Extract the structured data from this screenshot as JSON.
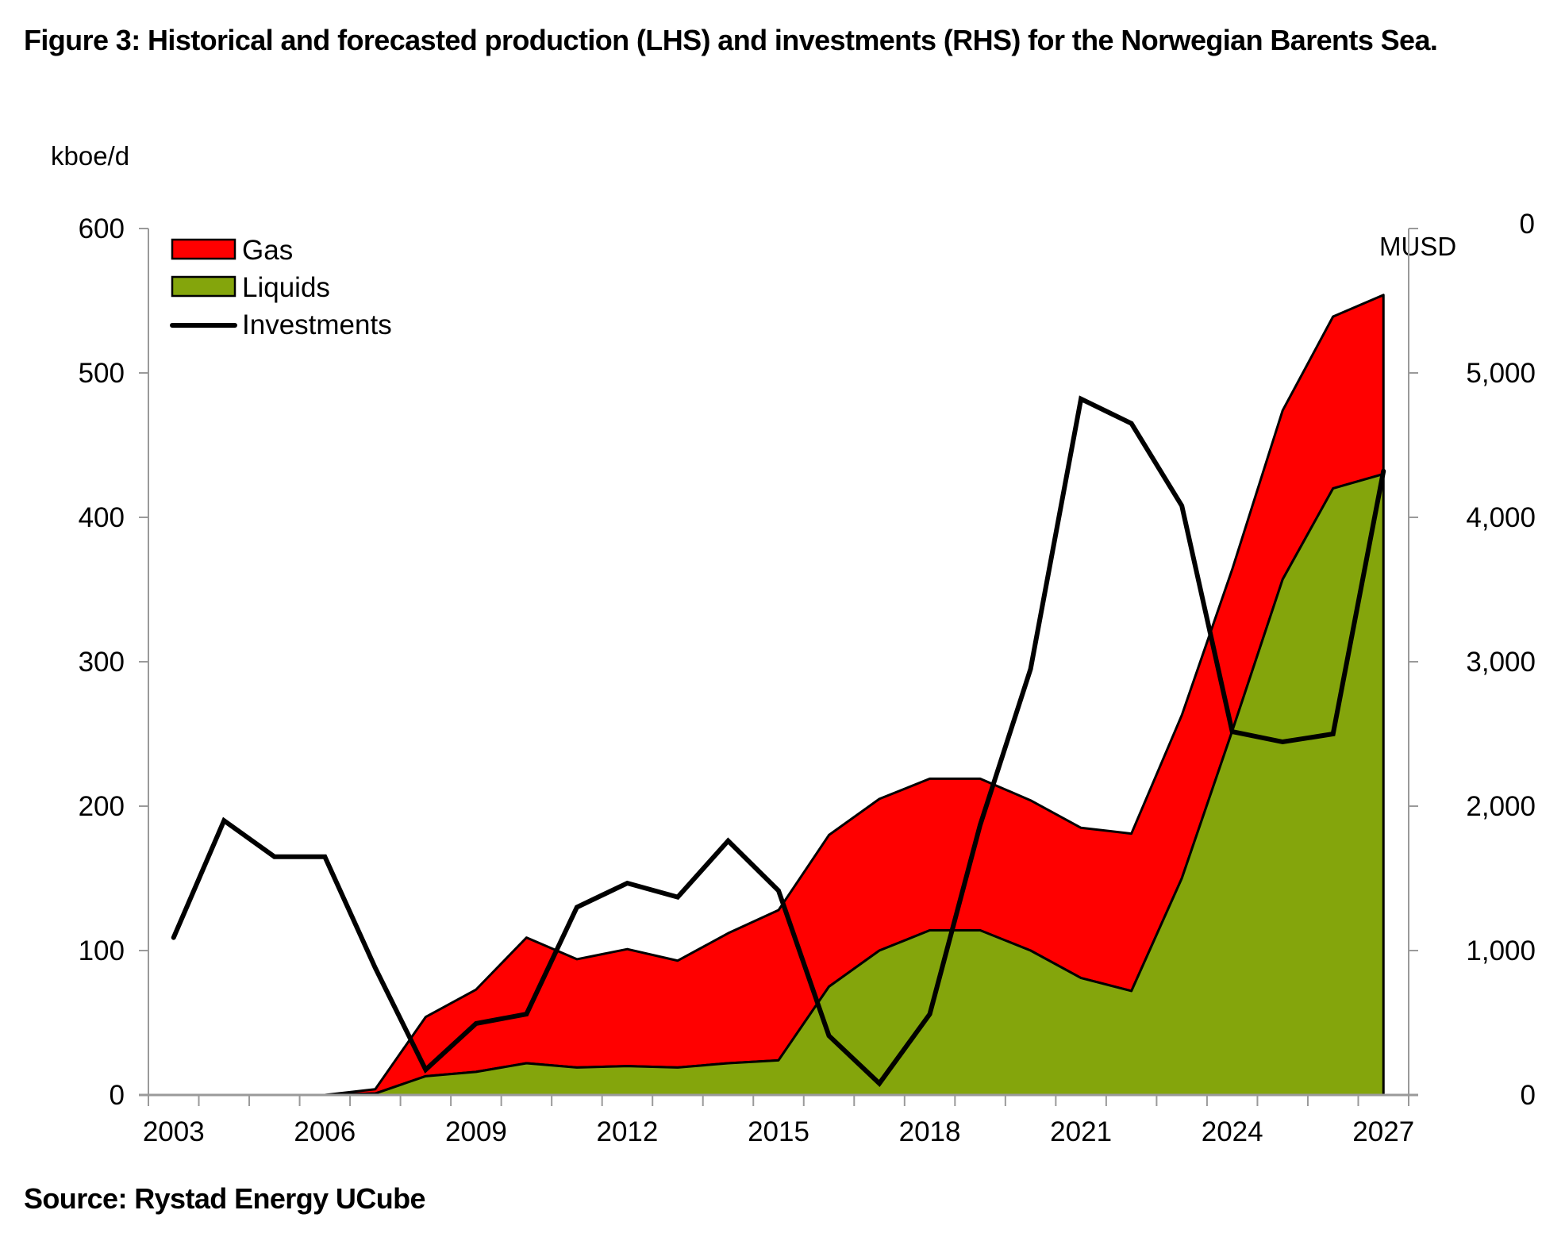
{
  "chart_data": {
    "type": "area",
    "title": "Figure 3: Historical and forecasted production (LHS) and investments (RHS) for the Norwegian Barents Sea.",
    "source": "Source: Rystad Energy UCube",
    "ylabel_left": "kboe/d",
    "ylabel_right": "MUSD",
    "ylim_left": [
      0,
      600
    ],
    "ylim_right": [
      0,
      6000
    ],
    "yticks_left": [
      "0",
      "100",
      "200",
      "300",
      "400",
      "500",
      "600"
    ],
    "yticks_right": [
      "0",
      "1,000",
      "2,000",
      "3,000",
      "4,000",
      "5,000",
      "0"
    ],
    "x": [
      2003,
      2004,
      2005,
      2006,
      2007,
      2008,
      2009,
      2010,
      2011,
      2012,
      2013,
      2014,
      2015,
      2016,
      2017,
      2018,
      2019,
      2020,
      2021,
      2022,
      2023,
      2024,
      2025,
      2026,
      2027
    ],
    "xtick_labels": [
      "2003",
      "2006",
      "2009",
      "2012",
      "2015",
      "2018",
      "2021",
      "2024",
      "2027"
    ],
    "legend": [
      "Gas",
      "Liquids",
      "Investments"
    ],
    "legend_position": "top-left",
    "colors": {
      "gas": "#ff0000",
      "liquids": "#84a50c",
      "investments": "#000000"
    },
    "series": [
      {
        "name": "Liquids",
        "kind": "stacked-area",
        "axis": "left",
        "values": [
          0,
          0,
          0,
          0,
          1,
          13,
          16,
          22,
          19,
          20,
          19,
          22,
          24,
          75,
          100,
          114,
          114,
          100,
          81,
          72,
          150,
          252,
          357,
          420,
          430
        ]
      },
      {
        "name": "Gas",
        "kind": "stacked-area",
        "axis": "left",
        "values": [
          0,
          0,
          0,
          0,
          3,
          41,
          57,
          87,
          75,
          81,
          74,
          90,
          104,
          105,
          105,
          105,
          105,
          104,
          104,
          109,
          113,
          112,
          117,
          119,
          124
        ]
      },
      {
        "name": "Investments",
        "kind": "line",
        "axis": "right",
        "values": [
          1090,
          1900,
          1650,
          1650,
          880,
          175,
          495,
          560,
          1300,
          1467,
          1370,
          1760,
          1415,
          410,
          80,
          560,
          1870,
          2950,
          4820,
          4650,
          4080,
          2516,
          2445,
          2500,
          4320
        ]
      }
    ],
    "grid": false
  }
}
